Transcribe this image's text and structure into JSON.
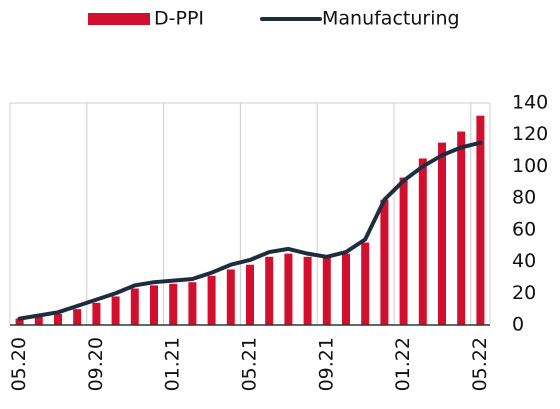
{
  "chart_data": {
    "type": "bar-line",
    "categories": [
      "05.20",
      null,
      null,
      null,
      "09.20",
      null,
      null,
      null,
      "01.21",
      null,
      null,
      null,
      "05.21",
      null,
      null,
      null,
      "09.21",
      null,
      null,
      null,
      "01.22",
      null,
      null,
      null,
      "05.22"
    ],
    "series": [
      {
        "name": "D-PPI",
        "type": "bar",
        "color": "#d20f2f",
        "values": [
          4,
          5,
          7,
          10,
          14,
          18,
          23,
          25,
          26,
          27,
          31,
          35,
          38,
          43,
          45,
          43,
          43,
          45,
          52,
          79,
          93,
          105,
          115,
          122,
          132
        ]
      },
      {
        "name": "Manufacturing",
        "type": "line",
        "color": "#1e2d3d",
        "values": [
          4,
          6,
          8,
          12,
          16,
          20,
          25,
          27,
          28,
          29,
          33,
          38,
          41,
          46,
          48,
          45,
          43,
          46,
          54,
          79,
          91,
          100,
          107,
          112,
          115
        ]
      }
    ],
    "ylim": [
      0,
      140
    ],
    "yticks": [
      0,
      20,
      40,
      60,
      80,
      100,
      120,
      140
    ],
    "grid": true,
    "legend": "top"
  }
}
